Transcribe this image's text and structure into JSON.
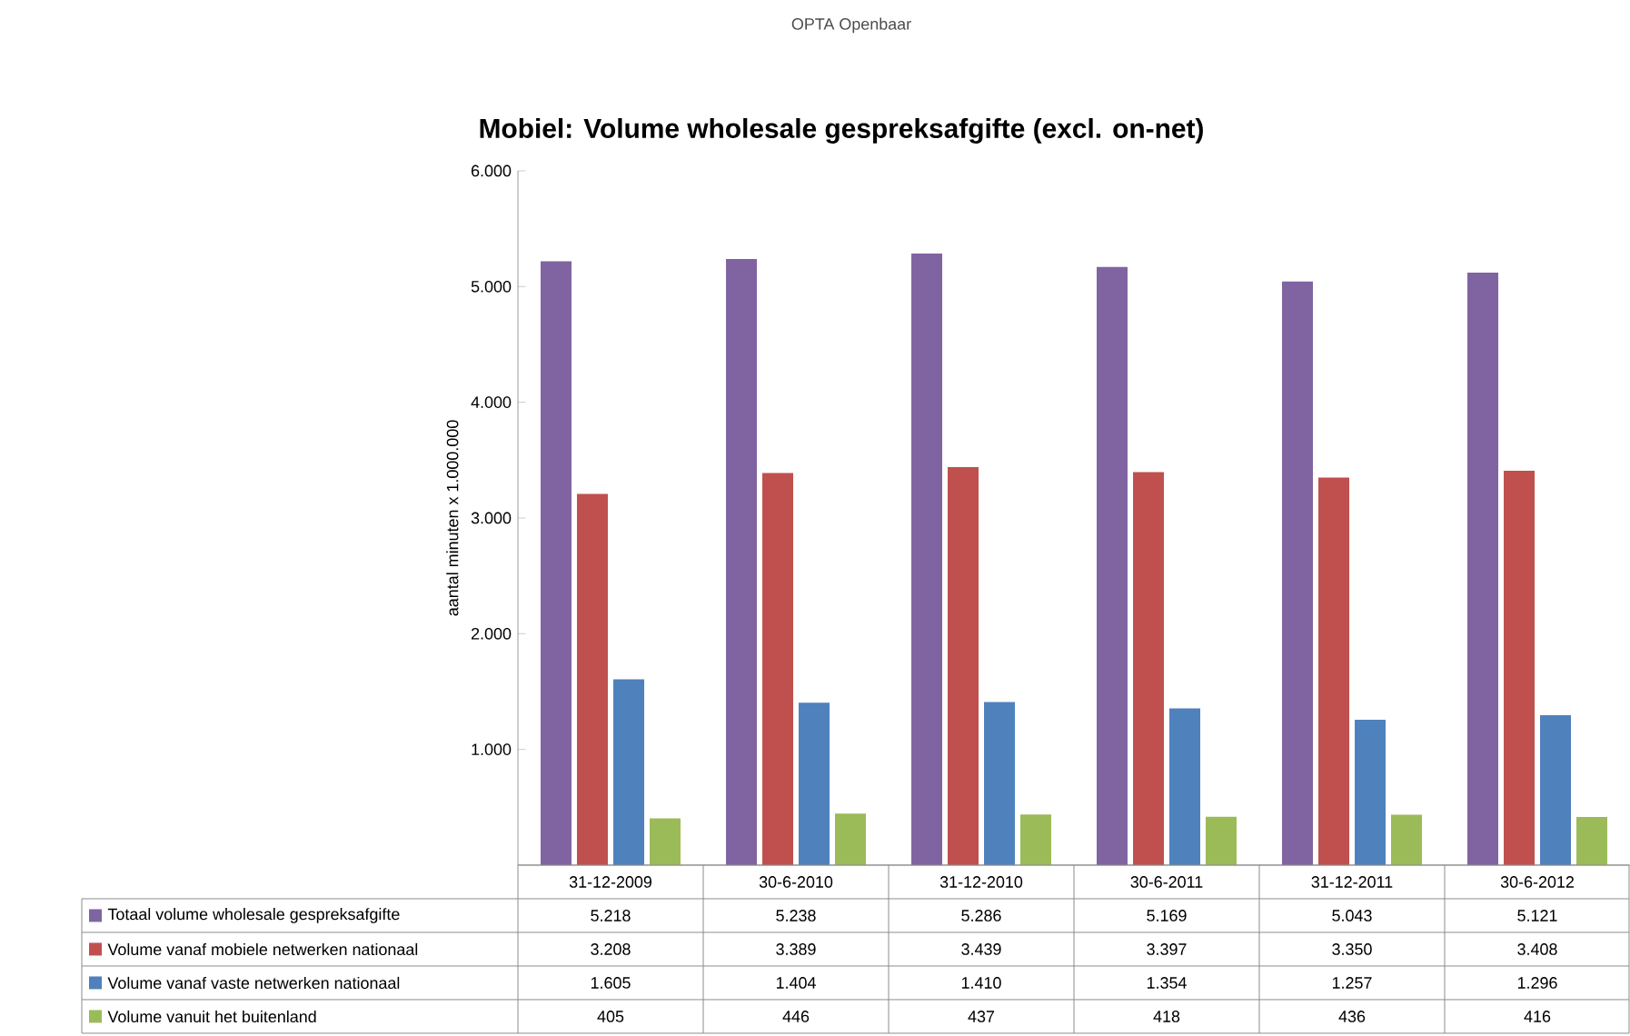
{
  "chart_data": {
    "type": "bar",
    "title": "Mobiel: Volume wholesale gespreksafgifte (excl. on-net)",
    "ylabel": "aantal minuten x 1.000.000",
    "annotations": [
      "OPTA Openbaar"
    ],
    "categories": [
      "31-12-2009",
      "30-6-2010",
      "31-12-2010",
      "30-6-2011",
      "31-12-2011",
      "30-6-2012"
    ],
    "series": [
      {
        "name": "Totaal volume wholesale gespreksafgifte",
        "color": "#8064a2",
        "values": [
          5218,
          5238,
          5286,
          5169,
          5043,
          5121
        ],
        "value_labels": [
          "5.218",
          "5.238",
          "5.286",
          "5.169",
          "5.043",
          "5.121"
        ]
      },
      {
        "name": "Volume vanaf mobiele netwerken nationaal",
        "color": "#c0504d",
        "values": [
          3208,
          3389,
          3439,
          3397,
          3350,
          3408
        ],
        "value_labels": [
          "3.208",
          "3.389",
          "3.439",
          "3.397",
          "3.350",
          "3.408"
        ]
      },
      {
        "name": "Volume vanaf vaste netwerken nationaal",
        "color": "#4f81bd",
        "values": [
          1605,
          1404,
          1410,
          1354,
          1257,
          1296
        ],
        "value_labels": [
          "1.605",
          "1.404",
          "1.410",
          "1.354",
          "1.257",
          "1.296"
        ]
      },
      {
        "name": "Volume vanuit het buitenland",
        "color": "#9bbb59",
        "values": [
          405,
          446,
          437,
          418,
          436,
          416
        ],
        "value_labels": [
          "405",
          "446",
          "437",
          "418",
          "436",
          "416"
        ]
      }
    ],
    "ylim": [
      0,
      6000
    ],
    "yticks": [
      {
        "value": 1000,
        "label": "1.000"
      },
      {
        "value": 2000,
        "label": "2.000"
      },
      {
        "value": 3000,
        "label": "3.000"
      },
      {
        "value": 4000,
        "label": "4.000"
      },
      {
        "value": 5000,
        "label": "5.000"
      },
      {
        "value": 6000,
        "label": "6.000"
      }
    ],
    "legend": "bottom"
  }
}
